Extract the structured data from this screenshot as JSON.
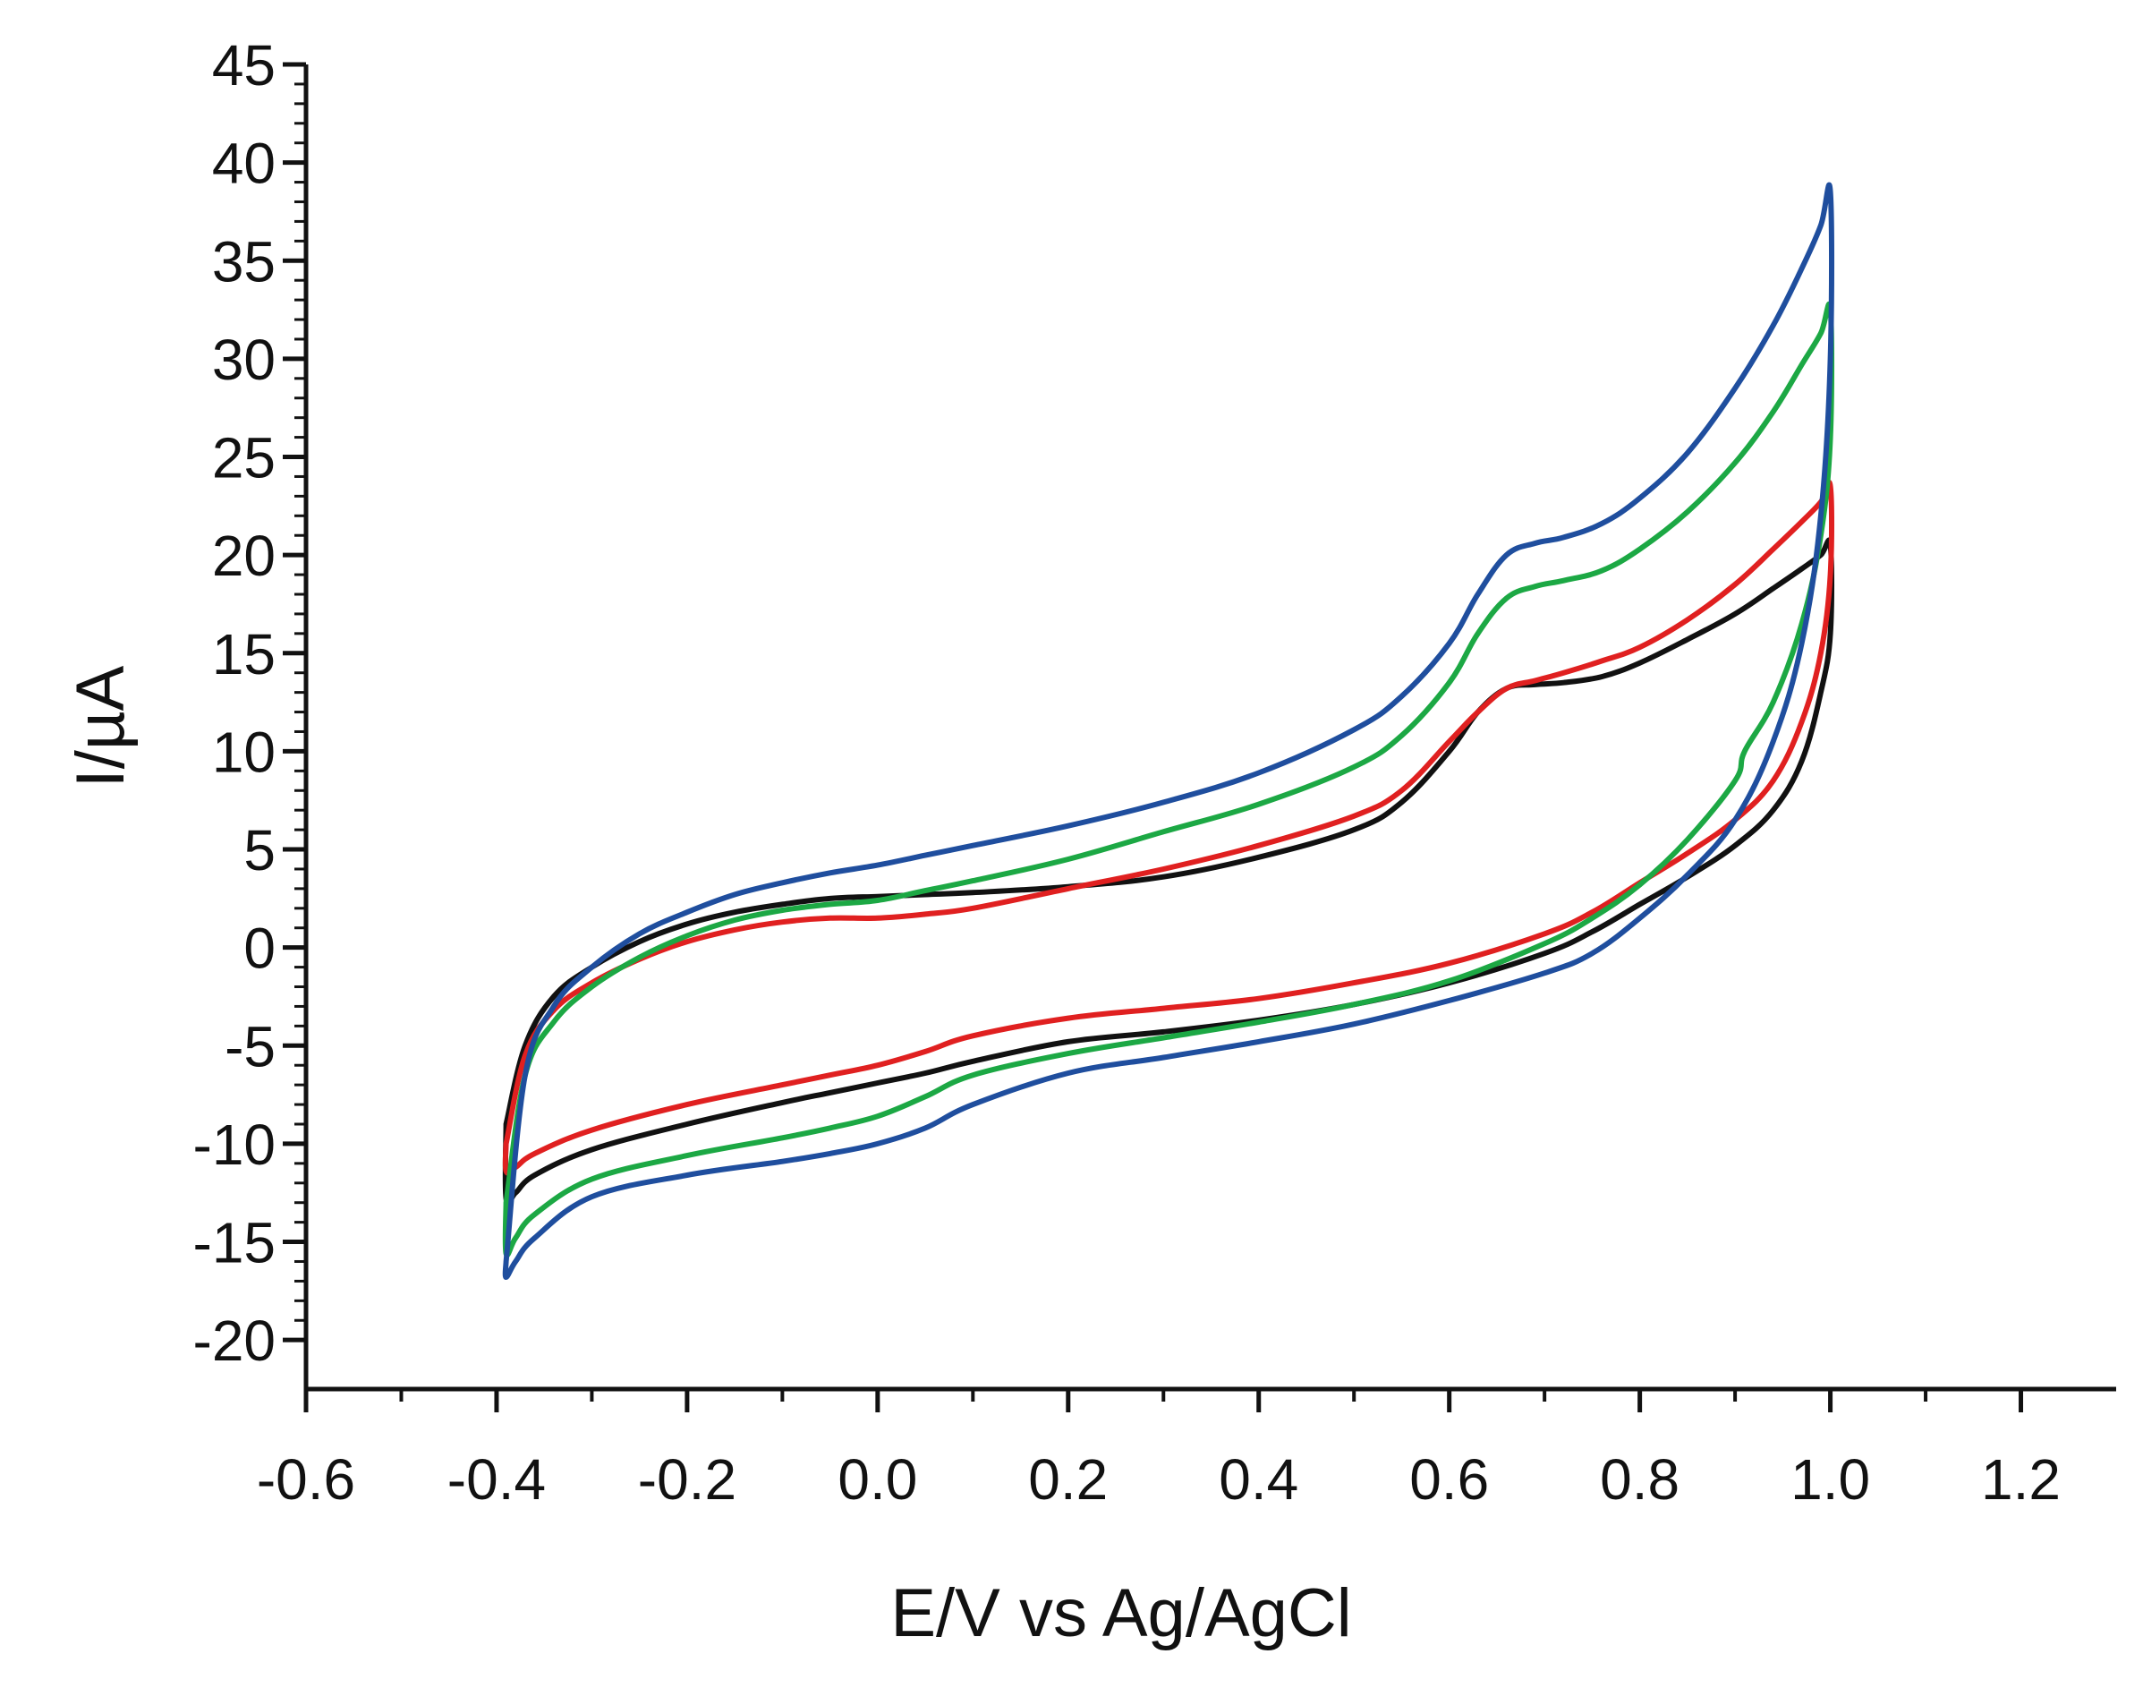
{
  "chart_data": {
    "type": "line",
    "title": "",
    "xlabel": "E/V vs Ag/AgCl",
    "ylabel": "I/µA",
    "xlim": [
      -0.6,
      1.3
    ],
    "ylim": [
      -22.5,
      45
    ],
    "grid": false,
    "legend": "none",
    "x_ticks": [
      -0.6,
      -0.4,
      -0.2,
      0.0,
      0.2,
      0.4,
      0.6,
      0.8,
      1.0,
      1.2
    ],
    "x_tick_labels": [
      "-0.6",
      "-0.4",
      "-0.2",
      "0.0",
      "0.2",
      "0.4",
      "0.6",
      "0.8",
      "1.0",
      "1.2"
    ],
    "y_ticks": [
      -20,
      -15,
      -10,
      -5,
      0,
      5,
      10,
      15,
      20,
      25,
      30,
      35,
      40,
      45
    ],
    "y_tick_labels": [
      "-20",
      "-15",
      "-10",
      "-5",
      "0",
      "5",
      "10",
      "15",
      "20",
      "25",
      "30",
      "35",
      "40",
      "45"
    ],
    "series": [
      {
        "name": "black",
        "color": "#111111",
        "x": [
          -0.39,
          -0.37,
          -0.34,
          -0.3,
          -0.25,
          -0.2,
          -0.15,
          -0.1,
          -0.05,
          0.0,
          0.05,
          0.1,
          0.2,
          0.3,
          0.4,
          0.5,
          0.55,
          0.6,
          0.63,
          0.66,
          0.69,
          0.72,
          0.76,
          0.8,
          0.85,
          0.9,
          0.94,
          0.97,
          0.99,
          1.0,
          1.0,
          0.99,
          0.97,
          0.94,
          0.9,
          0.85,
          0.8,
          0.75,
          0.7,
          0.6,
          0.5,
          0.4,
          0.3,
          0.2,
          0.1,
          0.05,
          0.0,
          -0.05,
          -0.1,
          -0.2,
          -0.3,
          -0.36,
          -0.38,
          -0.39,
          -0.39
        ],
        "y": [
          -9.0,
          -5.0,
          -2.5,
          -1.0,
          0.3,
          1.2,
          1.8,
          2.2,
          2.5,
          2.6,
          2.7,
          2.8,
          3.1,
          3.6,
          4.6,
          6.0,
          7.4,
          10.0,
          12.0,
          13.2,
          13.4,
          13.5,
          13.8,
          14.5,
          15.7,
          17.0,
          18.3,
          19.3,
          20.0,
          20.5,
          16.0,
          13.0,
          9.5,
          7.0,
          5.2,
          3.6,
          2.2,
          0.8,
          -0.3,
          -1.8,
          -2.9,
          -3.7,
          -4.3,
          -4.8,
          -5.8,
          -6.4,
          -6.9,
          -7.4,
          -7.9,
          -9.0,
          -10.3,
          -11.6,
          -12.5,
          -12.8,
          -9.0
        ]
      },
      {
        "name": "red",
        "color": "#e02020",
        "x": [
          -0.39,
          -0.37,
          -0.34,
          -0.3,
          -0.25,
          -0.2,
          -0.15,
          -0.1,
          -0.05,
          0.0,
          0.05,
          0.1,
          0.2,
          0.3,
          0.4,
          0.5,
          0.55,
          0.6,
          0.63,
          0.66,
          0.69,
          0.72,
          0.76,
          0.8,
          0.85,
          0.9,
          0.94,
          0.97,
          0.99,
          1.0,
          1.0,
          0.99,
          0.97,
          0.94,
          0.9,
          0.85,
          0.8,
          0.75,
          0.7,
          0.6,
          0.5,
          0.4,
          0.3,
          0.2,
          0.1,
          0.05,
          0.0,
          -0.05,
          -0.1,
          -0.2,
          -0.3,
          -0.36,
          -0.38,
          -0.39,
          -0.39
        ],
        "y": [
          -10.0,
          -5.5,
          -3.2,
          -1.8,
          -0.6,
          0.3,
          0.9,
          1.3,
          1.5,
          1.5,
          1.7,
          2.0,
          3.0,
          4.0,
          5.2,
          6.7,
          8.0,
          10.5,
          12.0,
          13.2,
          13.6,
          14.0,
          14.6,
          15.3,
          16.7,
          18.5,
          20.3,
          21.7,
          22.7,
          23.5,
          19.0,
          15.0,
          11.5,
          8.5,
          6.5,
          4.8,
          3.3,
          1.8,
          0.7,
          -0.8,
          -1.8,
          -2.6,
          -3.1,
          -3.6,
          -4.5,
          -5.3,
          -6.0,
          -6.5,
          -7.0,
          -8.0,
          -9.3,
          -10.5,
          -11.2,
          -11.4,
          -10.0
        ]
      },
      {
        "name": "green",
        "color": "#1ca844",
        "x": [
          -0.39,
          -0.37,
          -0.34,
          -0.3,
          -0.25,
          -0.2,
          -0.15,
          -0.1,
          -0.05,
          0.0,
          0.05,
          0.1,
          0.2,
          0.3,
          0.4,
          0.5,
          0.55,
          0.6,
          0.63,
          0.66,
          0.69,
          0.72,
          0.76,
          0.8,
          0.85,
          0.9,
          0.94,
          0.97,
          0.99,
          1.0,
          1.0,
          0.99,
          0.97,
          0.94,
          0.91,
          0.9,
          0.85,
          0.8,
          0.75,
          0.7,
          0.6,
          0.5,
          0.4,
          0.3,
          0.2,
          0.1,
          0.05,
          0.0,
          -0.05,
          -0.1,
          -0.2,
          -0.3,
          -0.36,
          -0.38,
          -0.39,
          -0.39
        ],
        "y": [
          -13.0,
          -6.5,
          -3.8,
          -2.0,
          -0.5,
          0.6,
          1.4,
          1.9,
          2.2,
          2.4,
          2.9,
          3.4,
          4.5,
          5.9,
          7.3,
          9.2,
          10.8,
          13.5,
          16.0,
          17.8,
          18.4,
          18.7,
          19.2,
          20.3,
          22.2,
          24.7,
          27.3,
          29.7,
          31.3,
          32.5,
          26.0,
          21.0,
          16.5,
          12.5,
          10.0,
          8.5,
          5.5,
          3.2,
          1.5,
          0.2,
          -1.7,
          -2.9,
          -3.8,
          -4.6,
          -5.4,
          -6.5,
          -7.6,
          -8.6,
          -9.2,
          -9.7,
          -10.6,
          -11.8,
          -13.6,
          -14.8,
          -15.6,
          -13.0
        ]
      },
      {
        "name": "blue",
        "color": "#1f4e9e",
        "x": [
          -0.39,
          -0.37,
          -0.34,
          -0.3,
          -0.25,
          -0.2,
          -0.15,
          -0.1,
          -0.05,
          0.0,
          0.05,
          0.1,
          0.2,
          0.3,
          0.4,
          0.5,
          0.55,
          0.6,
          0.63,
          0.66,
          0.69,
          0.72,
          0.76,
          0.8,
          0.85,
          0.9,
          0.94,
          0.97,
          0.99,
          1.0,
          1.0,
          0.99,
          0.97,
          0.94,
          0.9,
          0.85,
          0.8,
          0.75,
          0.7,
          0.6,
          0.5,
          0.4,
          0.3,
          0.2,
          0.1,
          0.05,
          0.0,
          -0.05,
          -0.1,
          -0.2,
          -0.3,
          -0.36,
          -0.38,
          -0.39,
          -0.39
        ],
        "y": [
          -16.0,
          -6.5,
          -3.0,
          -1.0,
          0.7,
          1.8,
          2.7,
          3.3,
          3.8,
          4.2,
          4.7,
          5.2,
          6.2,
          7.4,
          8.9,
          11.1,
          12.8,
          15.5,
          18.0,
          20.0,
          20.6,
          20.9,
          21.6,
          22.9,
          25.2,
          28.5,
          31.7,
          34.6,
          36.8,
          38.5,
          30.0,
          22.0,
          15.5,
          10.5,
          6.5,
          3.7,
          1.5,
          -0.3,
          -1.3,
          -2.7,
          -3.9,
          -4.8,
          -5.6,
          -6.4,
          -8.0,
          -9.2,
          -10.0,
          -10.5,
          -10.9,
          -11.6,
          -12.7,
          -14.8,
          -16.0,
          -16.8,
          -16.0
        ]
      }
    ]
  }
}
